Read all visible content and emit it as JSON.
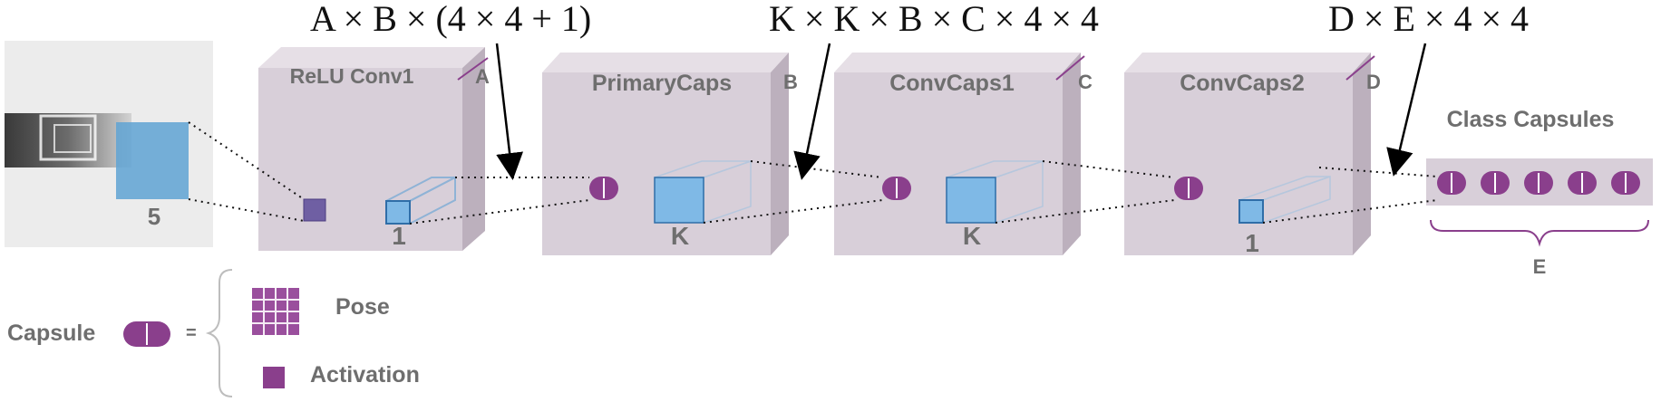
{
  "formulas": {
    "conv1": "A × B × (4 × 4 + 1)",
    "primary": "K × K × B × C × 4 × 4",
    "conv2": "D × E × 4 × 4"
  },
  "layers": {
    "input_kernel": "5",
    "conv1": {
      "title": "ReLU Conv1",
      "depth": "A",
      "kernel": "1"
    },
    "primary": {
      "title": "PrimaryCaps",
      "depth": "B",
      "kernel": "K"
    },
    "convcaps1": {
      "title": "ConvCaps1",
      "depth": "C",
      "kernel": "K"
    },
    "convcaps2": {
      "title": "ConvCaps2",
      "depth": "D",
      "kernel": "1"
    },
    "class": {
      "title": "Class Capsules",
      "count": "E"
    }
  },
  "legend": {
    "capsule": "Capsule",
    "equals": "=",
    "pose": "Pose",
    "activation": "Activation"
  },
  "colors": {
    "box_front": "#d8cfd9",
    "box_side": "#bcb0bd",
    "box_top": "#e6dfe6",
    "capsule": "#8a3f8c",
    "kernel": "#7fb9e6",
    "kernel_stroke": "#2f6ea8",
    "text": "#6e6e6e"
  }
}
